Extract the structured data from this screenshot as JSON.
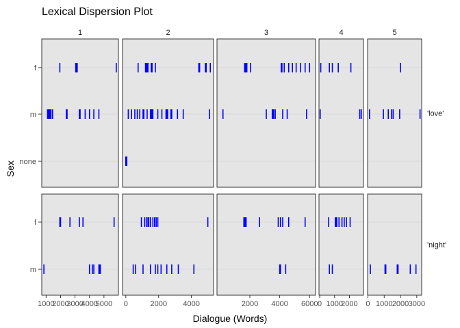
{
  "chart_data": {
    "type": "dispersion",
    "title": "Lexical Dispersion Plot",
    "xlabel": "Dialogue (Words)",
    "ylabel": "Sex",
    "row_categories": [
      [
        "f",
        "m",
        "none"
      ],
      [
        "f",
        "m"
      ]
    ],
    "colors": {
      "mark": "#0000FF",
      "panel_bg": "#E5E5E5",
      "grid": "#D9D9D9",
      "border": "#333333"
    },
    "columns": [
      {
        "label": "1",
        "xlim": [
          700,
          6000
        ],
        "ticks": [
          1000,
          2000,
          3000,
          4000,
          5000
        ],
        "tick_labels": [
          "1000",
          "2000",
          "3000",
          "4000",
          "5000"
        ]
      },
      {
        "label": "2",
        "xlim": [
          -200,
          5350
        ],
        "ticks": [
          0,
          2000,
          4000
        ],
        "tick_labels": [
          "0",
          "2000",
          "4000"
        ]
      },
      {
        "label": "3",
        "xlim": [
          -200,
          6400
        ],
        "ticks": [
          2000,
          4000,
          6000
        ],
        "tick_labels": [
          "2000",
          "4000",
          "6000"
        ]
      },
      {
        "label": "4",
        "xlim": [
          -50,
          2950
        ],
        "ticks": [
          0,
          1000,
          2000
        ],
        "tick_labels": [
          "0",
          "1000",
          "2000"
        ]
      },
      {
        "label": "5",
        "xlim": [
          -20,
          3300
        ],
        "ticks": [
          0,
          1000,
          2000,
          3000
        ],
        "tick_labels": [
          "0",
          "1000",
          "2000",
          "3000"
        ]
      }
    ],
    "rows": [
      {
        "label": "'love'",
        "panels": [
          {
            "f": [
              1950,
              3050,
              3100,
              3150,
              5850
            ],
            "m": [
              1100,
              1120,
              1140,
              1160,
              1180,
              1200,
              1220,
              1240,
              1260,
              1280,
              1300,
              1320,
              1340,
              1450,
              2400,
              2450,
              3300,
              3350,
              3700,
              4000,
              4300,
              4650
            ],
            "none": []
          },
          {
            "f": [
              750,
              1200,
              1250,
              1300,
              1350,
              1550,
              1600,
              1800,
              4450,
              4500,
              4850,
              4900,
              5150
            ],
            "m": [
              150,
              350,
              550,
              700,
              850,
              1050,
              1100,
              1300,
              1500,
              1550,
              1600,
              1650,
              1950,
              2200,
              2450,
              2500,
              2550,
              2750,
              2800,
              3150,
              3500,
              5100
            ],
            "none": [
              0,
              30,
              60
            ]
          },
          {
            "f": [
              1650,
              1700,
              1750,
              1800,
              2050,
              4100,
              4150,
              4300,
              4600,
              4850,
              5100,
              5400,
              5700,
              6000
            ],
            "m": [
              200,
              3100,
              3500,
              3550,
              3600,
              3700,
              4200,
              4500,
              5800
            ],
            "none": []
          },
          {
            "f": [
              70,
              650,
              850,
              1250,
              2100
            ],
            "m": [
              30,
              2700,
              2800
            ],
            "none": []
          },
          {
            "f": [
              2000
            ],
            "m": [
              100,
              950,
              1250,
              1450,
              1550,
              1950,
              3200
            ],
            "none": []
          }
        ]
      },
      {
        "label": "'night'",
        "panels": [
          {
            "f": [
              1950,
              2000,
              2650,
              3300,
              3550,
              5700
            ],
            "m": [
              850,
              4000,
              4200,
              4300,
              4650,
              4700,
              4750
            ]
          },
          {
            "f": [
              950,
              1150,
              1250,
              1350,
              1400,
              1500,
              1650,
              1750,
              1850,
              1950,
              5000
            ],
            "m": [
              450,
              600,
              1050,
              1500,
              1800,
              1950,
              2150,
              2500,
              2800,
              3200,
              4150
            ]
          },
          {
            "f": [
              1600,
              1650,
              1700,
              1750,
              2650,
              3900,
              4050,
              4200,
              4600,
              5700
            ],
            "m": [
              4000,
              4050,
              4400
            ]
          },
          {
            "f": [
              600,
              1050,
              1100,
              1150,
              1300,
              1500,
              1650,
              1800,
              2050
            ],
            "m": [
              650,
              850
            ]
          },
          {
            "f": [],
            "m": [
              150,
              1050,
              1100,
              1800,
              1850,
              2600,
              2950
            ]
          }
        ]
      }
    ]
  }
}
